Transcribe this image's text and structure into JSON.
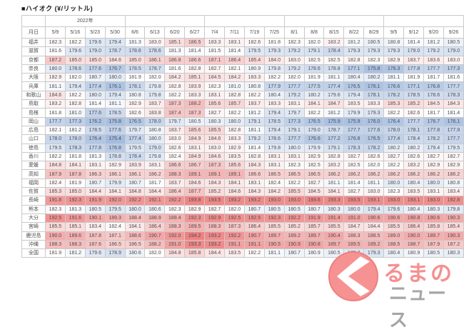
{
  "title": "■ハイオク (¥/リットル)",
  "chart_data": {
    "type": "table",
    "subtype": "heatmap",
    "year_label": "2022年",
    "corner_label": "月日",
    "columns": [
      "5/9",
      "5/16",
      "5/23",
      "5/30",
      "6/6",
      "6/13",
      "6/20",
      "6/27",
      "7/4",
      "7/11",
      "7/19",
      "7/25",
      "8/1",
      "8/8",
      "8/15",
      "8/22",
      "8/29",
      "9/5",
      "9/12",
      "9/20",
      "9/26"
    ],
    "month_spans": [
      4,
      4,
      4,
      5,
      4
    ],
    "month_start_indices": [
      4,
      8,
      12,
      17
    ],
    "rows": [
      {
        "name": "福井",
        "values": [
          182.3,
          182.2,
          179.6,
          179.4,
          181.3,
          183.0,
          185.1,
          186.5,
          183.3,
          183.1,
          182.6,
          181.8,
          182.3,
          182.0,
          183.2,
          181.2,
          180.5,
          180.8,
          181.4,
          181.2,
          180.5
        ]
      },
      {
        "name": "滋賀",
        "values": [
          181.6,
          179.6,
          179.0,
          178.7,
          178.6,
          178.6,
          181.3,
          181.4,
          181.5,
          181.4,
          179.5,
          179.3,
          179.2,
          179.1,
          178.4,
          179.3,
          179.3,
          179.3,
          179.0,
          179.2,
          179.0
        ]
      },
      {
        "name": "京都",
        "values": [
          187.2,
          185.0,
          185.0,
          184.6,
          185.0,
          186.1,
          186.8,
          186.6,
          187.1,
          186.4,
          185.4,
          184.0,
          183.0,
          182.5,
          182.5,
          182.8,
          182.3,
          182.9,
          183.7,
          183.6,
          183.0
        ]
      },
      {
        "name": "奈良",
        "values": [
          180.0,
          178.6,
          177.6,
          176.7,
          178.5,
          178.7,
          181.6,
          182.8,
          182.7,
          182.1,
          180.9,
          179.8,
          179.2,
          178.6,
          178.8,
          177.1,
          175.8,
          176.3,
          177.8,
          177.7,
          177.3
        ]
      },
      {
        "name": "大阪",
        "values": [
          182.9,
          182.0,
          180.7,
          180.0,
          181.9,
          182.0,
          184.2,
          185.1,
          184.5,
          184.2,
          183.3,
          182.2,
          182.0,
          181.9,
          181.1,
          180.4,
          180.2,
          181.1,
          181.9,
          181.7,
          181.6
        ]
      },
      {
        "name": "兵庫",
        "values": [
          181.1,
          179.4,
          177.4,
          176.1,
          178.1,
          179.8,
          182.8,
          183.9,
          182.3,
          181.0,
          180.8,
          177.9,
          177.7,
          177.5,
          177.4,
          176.5,
          176.1,
          176.6,
          177.1,
          176.8,
          177.7
        ]
      },
      {
        "name": "和歌山",
        "values": [
          184.6,
          182.2,
          180.0,
          179.4,
          180.8,
          179.8,
          182.2,
          183.3,
          183.1,
          182.8,
          182.2,
          180.4,
          179.2,
          180.2,
          179.6,
          179.4,
          178.1,
          178.2,
          178.5,
          178.6,
          178.3
        ]
      },
      {
        "name": "鳥取",
        "values": [
          183.2,
          182.8,
          181.4,
          181.1,
          182.9,
          183.7,
          187.3,
          188.2,
          185.6,
          185.7,
          183.7,
          183.3,
          183.1,
          184.1,
          184.7,
          183.5,
          183.3,
          185.3,
          185.2,
          184.5,
          184.3
        ]
      },
      {
        "name": "島根",
        "values": [
          181.8,
          181.0,
          177.6,
          178.5,
          182.6,
          183.8,
          187.4,
          187.3,
          182.7,
          182.2,
          181.2,
          179.4,
          179.7,
          182.2,
          181.2,
          179.9,
          179.3,
          182.2,
          182.6,
          181.7,
          181.4
        ]
      },
      {
        "name": "岡山",
        "values": [
          177.7,
          177.3,
          176.2,
          175.8,
          176.5,
          178.0,
          179.7,
          180.5,
          180.3,
          180.0,
          179.1,
          178.5,
          177.3,
          176.5,
          175.9,
          175.9,
          176.0,
          176.4,
          177.7,
          176.7,
          176.1
        ]
      },
      {
        "name": "広島",
        "values": [
          182.1,
          181.2,
          178.5,
          177.6,
          179.7,
          180.8,
          183.7,
          185.6,
          185.5,
          182.8,
          181.1,
          179.4,
          179.1,
          179.0,
          178.7,
          177.7,
          177.6,
          178.0,
          178.1,
          177.8,
          177.9
        ]
      },
      {
        "name": "山口",
        "values": [
          178.0,
          178.0,
          176.4,
          175.4,
          177.4,
          180.0,
          183.0,
          184.9,
          184.6,
          183.3,
          179.2,
          178.6,
          177.7,
          176.6,
          177.2,
          176.8,
          176.5,
          177.4,
          178.4,
          178.2,
          177.7
        ]
      },
      {
        "name": "徳島",
        "values": [
          179.5,
          178.3,
          177.8,
          176.8,
          179.5,
          179.0,
          182.6,
          183.1,
          183.0,
          182.9,
          181.4,
          179.8,
          180.0,
          179.9,
          179.1,
          178.3,
          178.2,
          180.2,
          180.2,
          179.4,
          179.5
        ]
      },
      {
        "name": "香川",
        "values": [
          182.2,
          181.8,
          181.3,
          178.8,
          178.4,
          179.8,
          182.4,
          184.9,
          184.6,
          183.5,
          182.8,
          183.1,
          183.1,
          182.9,
          182.8,
          182.7,
          182.6,
          182.7,
          182.6,
          182.7,
          182.7
        ]
      },
      {
        "name": "愛媛",
        "values": [
          184.8,
          184.1,
          183.1,
          182.9,
          183.9,
          183.1,
          186.6,
          186.7,
          187.3,
          185.6,
          184.3,
          183.1,
          182.3,
          182.5,
          183.2,
          182.5,
          182.0,
          182.2,
          183.2,
          182.9,
          182.9
        ]
      },
      {
        "name": "高知",
        "values": [
          187.9,
          187.8,
          186.3,
          186.1,
          186.1,
          186.2,
          188.3,
          189.1,
          189.1,
          189.1,
          186.6,
          186.5,
          186.5,
          186.5,
          186.2,
          186.2,
          186.2,
          186.2,
          186.2,
          186.2,
          186.2
        ]
      },
      {
        "name": "福岡",
        "values": [
          182.4,
          181.9,
          180.7,
          179.9,
          180.7,
          181.7,
          183.7,
          184.6,
          184.3,
          184.1,
          183.1,
          182.4,
          182.2,
          182.7,
          181.1,
          181.4,
          181.1,
          180.0,
          180.4,
          180.0,
          180.8
        ]
      },
      {
        "name": "佐賀",
        "values": [
          185.3,
          185.0,
          184.4,
          184.1,
          184.8,
          184.4,
          186.4,
          187.7,
          185.2,
          184.6,
          184.3,
          184.2,
          185.5,
          184.5,
          184.1,
          182.7,
          183.0,
          182.3,
          183.5,
          183.1,
          183.4
        ]
      },
      {
        "name": "長崎",
        "values": [
          191.8,
          192.3,
          191.9,
          192.0,
          192.2,
          192.1,
          192.2,
          193.8,
          193.5,
          193.2,
          193.2,
          193.0,
          193.0,
          193.6,
          193.3,
          193.5,
          193.1,
          193.0,
          193.1,
          193.0,
          192.8
        ]
      },
      {
        "name": "熊本",
        "values": [
          182.3,
          181.3,
          180.5,
          179.5,
          180.0,
          180.6,
          182.3,
          182.9,
          182.7,
          182.0,
          180.7,
          180.5,
          180.5,
          180.7,
          180.3,
          180.0,
          179.4,
          179.6,
          180.4,
          180.3,
          179.8
        ]
      },
      {
        "name": "大分",
        "values": [
          192.5,
          191.6,
          190.1,
          189.3,
          188.4,
          188.9,
          189.4,
          192.3,
          192.9,
          192.5,
          192.5,
          192.3,
          192.2,
          191.9,
          191.4,
          191.0,
          190.6,
          190.6,
          190.8,
          190.6,
          190.3
        ]
      },
      {
        "name": "宮崎",
        "values": [
          185.5,
          185.1,
          183.4,
          182.4,
          184.1,
          186.4,
          188.3,
          189.5,
          188.3,
          187.3,
          186.4,
          185.5,
          185.2,
          185.7,
          185.5,
          184.7,
          184.4,
          185.5,
          186.4,
          185.8,
          185.4
        ]
      },
      {
        "name": "鹿児島",
        "values": [
          190.0,
          189.6,
          187.8,
          187.1,
          188.6,
          190.7,
          192.0,
          194.2,
          193.2,
          192.2,
          190.7,
          189.7,
          189.2,
          189.7,
          190.4,
          188.3,
          188.5,
          189.0,
          190.0,
          189.7,
          190.3
        ]
      },
      {
        "name": "沖縄",
        "values": [
          188.3,
          188.3,
          187.6,
          186.5,
          186.5,
          188.2,
          191.0,
          193.3,
          193.2,
          191.1,
          191.1,
          190.5,
          190.9,
          190.8,
          189.7,
          189.5,
          189.2,
          188.5,
          188.7,
          187.9,
          187.2
        ]
      },
      {
        "name": "全国",
        "values": [
          181.9,
          181.2,
          179.6,
          178.9,
          180.6,
          182.0,
          184.8,
          185.8,
          184.4,
          183.5,
          182.2,
          181.1,
          180.7,
          180.9,
          180.5,
          179.7,
          179.3,
          180.4,
          180.9,
          180.5,
          180.3
        ]
      }
    ],
    "colorscale": {
      "min": 175.4,
      "mid": 181.8,
      "max": 194.2,
      "min_color": "#a3bce1",
      "mid_color": "#ffffff",
      "max_color": "#ef8181"
    }
  },
  "watermark": {
    "mark": "く",
    "text_top": "るまの",
    "text_bottom": "ニュース",
    "red": "#f59090",
    "gray": "#a6a6a6"
  }
}
